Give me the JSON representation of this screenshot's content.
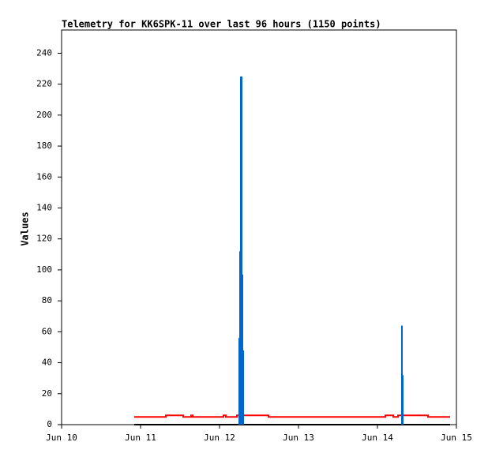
{
  "chart_data": {
    "type": "line",
    "title": "Telemetry for KK6SPK-11 over last 96 hours (1150 points)",
    "y_label": "Values",
    "xlim": [
      10,
      15
    ],
    "xticks": [
      {
        "value": 10,
        "label": "Jun 10"
      },
      {
        "value": 11,
        "label": "Jun 11"
      },
      {
        "value": 12,
        "label": "Jun 12"
      },
      {
        "value": 13,
        "label": "Jun 13"
      },
      {
        "value": 14,
        "label": "Jun 14"
      },
      {
        "value": 15,
        "label": "Jun 15"
      }
    ],
    "ylim": [
      0,
      255
    ],
    "yticks": [
      0,
      20,
      40,
      60,
      80,
      100,
      120,
      140,
      160,
      180,
      200,
      220,
      240
    ],
    "grid": false,
    "series": [
      {
        "color": "#000000",
        "style": "line",
        "x": [
          10.92,
          14.92
        ],
        "values": [
          0,
          0
        ]
      },
      {
        "color": "#ff0000",
        "style": "line",
        "x": [
          10.92,
          11.32,
          11.32,
          11.54,
          11.54,
          11.64,
          11.64,
          11.66,
          11.66,
          12.05,
          12.05,
          12.08,
          12.08,
          12.22,
          12.22,
          12.62,
          12.62,
          12.64,
          12.64,
          14.1,
          14.1,
          14.2,
          14.2,
          14.26,
          14.26,
          14.3,
          14.3,
          14.64,
          14.64,
          14.92
        ],
        "values": [
          5,
          5,
          6,
          6,
          5,
          5,
          6,
          6,
          5,
          5,
          6,
          6,
          5,
          5,
          6,
          6,
          5,
          5,
          5,
          5,
          6,
          6,
          5,
          5,
          6,
          6,
          6,
          6,
          5,
          5
        ]
      },
      {
        "color": "#0066cc",
        "style": "spikes",
        "x": [
          12.25,
          12.26,
          12.27,
          12.28,
          12.29,
          12.3,
          14.31,
          14.32
        ],
        "values": [
          56,
          112,
          225,
          225,
          97,
          48,
          64,
          32
        ]
      }
    ]
  }
}
